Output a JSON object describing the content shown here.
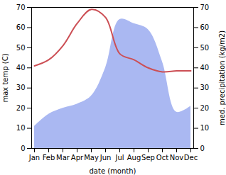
{
  "chart_data": {
    "type": "line",
    "x_label": "date (month)",
    "y_label": "max temp (C)",
    "y2_label": "med. precipitation (kg/m2)",
    "categories": [
      "Jan",
      "Feb",
      "Mar",
      "Apr",
      "May",
      "Jun",
      "Jul",
      "Aug",
      "Sep",
      "Oct",
      "Nov",
      "Dec"
    ],
    "series": [
      {
        "name": "max temp",
        "type": "line",
        "axis": "y",
        "color": "#cc4f55",
        "values": [
          41,
          44,
          51,
          62,
          69,
          65,
          47,
          44,
          40,
          38,
          38.5,
          38.5
        ]
      },
      {
        "name": "med. precipitation",
        "type": "area",
        "axis": "y2",
        "color": "#aab8f2",
        "values": [
          11,
          17,
          20,
          22,
          26,
          40,
          64,
          62,
          59,
          43,
          18,
          21
        ]
      }
    ],
    "ylim": [
      0,
      70
    ],
    "yticks": [
      0,
      10,
      20,
      30,
      40,
      50,
      60,
      70
    ],
    "y2lim": [
      0,
      70
    ],
    "y2ticks": [
      0,
      10,
      20,
      30,
      40,
      50,
      60,
      70
    ]
  }
}
